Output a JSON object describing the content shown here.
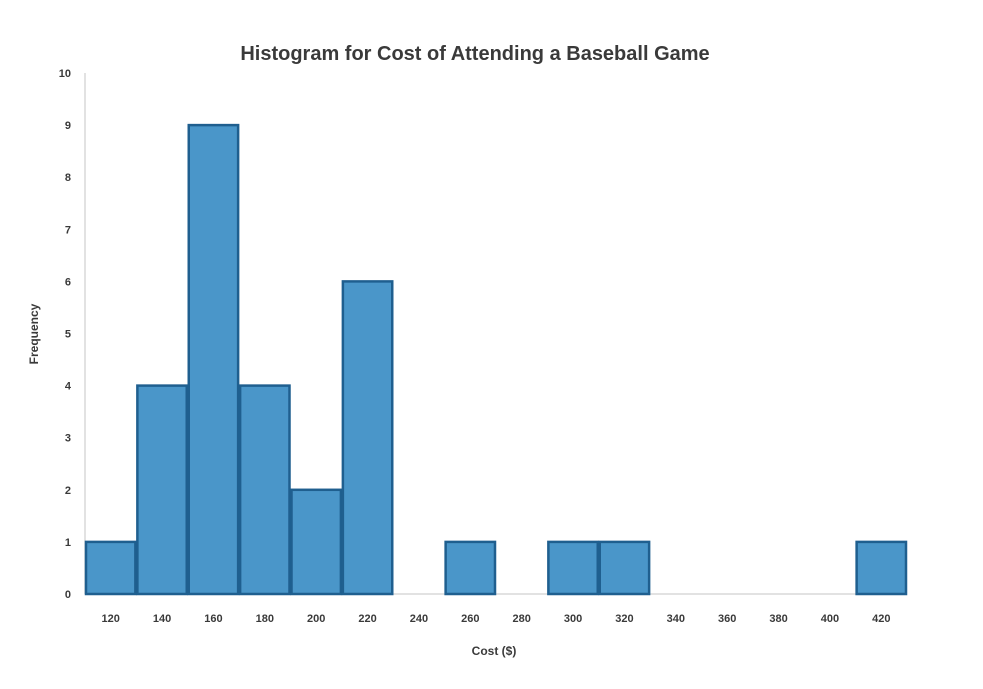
{
  "chart_data": {
    "type": "bar",
    "title": "Histogram for Cost of Attending a Baseball Game",
    "xlabel": "Cost ($)",
    "ylabel": "Frequency",
    "categories": [
      "120",
      "140",
      "160",
      "180",
      "200",
      "220",
      "240",
      "260",
      "280",
      "300",
      "320",
      "340",
      "360",
      "380",
      "400",
      "420"
    ],
    "values": [
      1,
      4,
      9,
      4,
      2,
      6,
      0,
      1,
      0,
      1,
      1,
      0,
      0,
      0,
      0,
      1
    ],
    "yticks": [
      "0",
      "1",
      "2",
      "3",
      "4",
      "5",
      "6",
      "7",
      "8",
      "9",
      "10"
    ],
    "ylim": [
      0,
      10
    ],
    "bar_color": "#4a96c9",
    "bar_edge_color": "#1f5f8f",
    "grid": false,
    "legend": "none"
  }
}
